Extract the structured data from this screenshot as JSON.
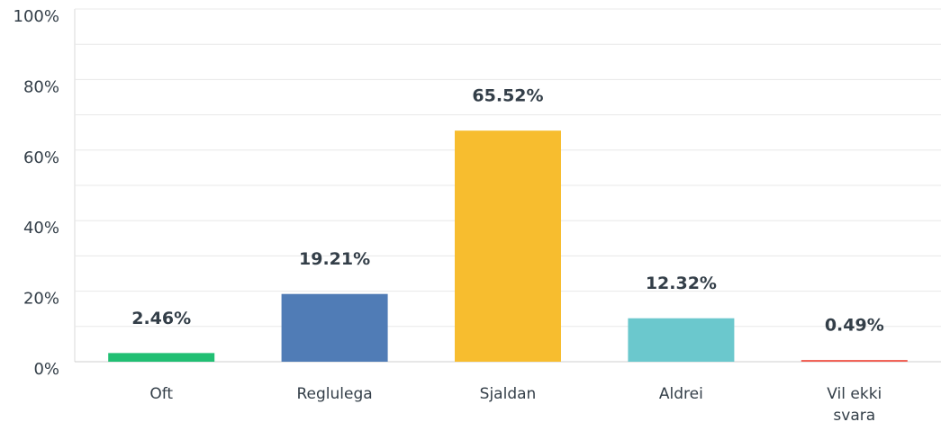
{
  "chart_data": {
    "type": "bar",
    "categories": [
      "Oft",
      "Reglulega",
      "Sjaldan",
      "Aldrei",
      "Vil ekki svara"
    ],
    "values": [
      2.46,
      19.21,
      65.52,
      12.32,
      0.49
    ],
    "value_labels": [
      "2.46%",
      "19.21%",
      "65.52%",
      "12.32%",
      "0.49%"
    ],
    "colors": [
      "#21bf73",
      "#507cb6",
      "#f7bd2f",
      "#6bc8cd",
      "#f05b4f"
    ],
    "ylim": [
      0,
      100
    ],
    "yticks": [
      {
        "value": 0,
        "label": "0%"
      },
      {
        "value": 20,
        "label": "20%"
      },
      {
        "value": 40,
        "label": "40%"
      },
      {
        "value": 60,
        "label": "60%"
      },
      {
        "value": 80,
        "label": "80%"
      },
      {
        "value": 100,
        "label": "100%"
      }
    ],
    "minor_yticks": [
      10,
      30,
      50,
      70,
      90
    ],
    "grid": true
  }
}
